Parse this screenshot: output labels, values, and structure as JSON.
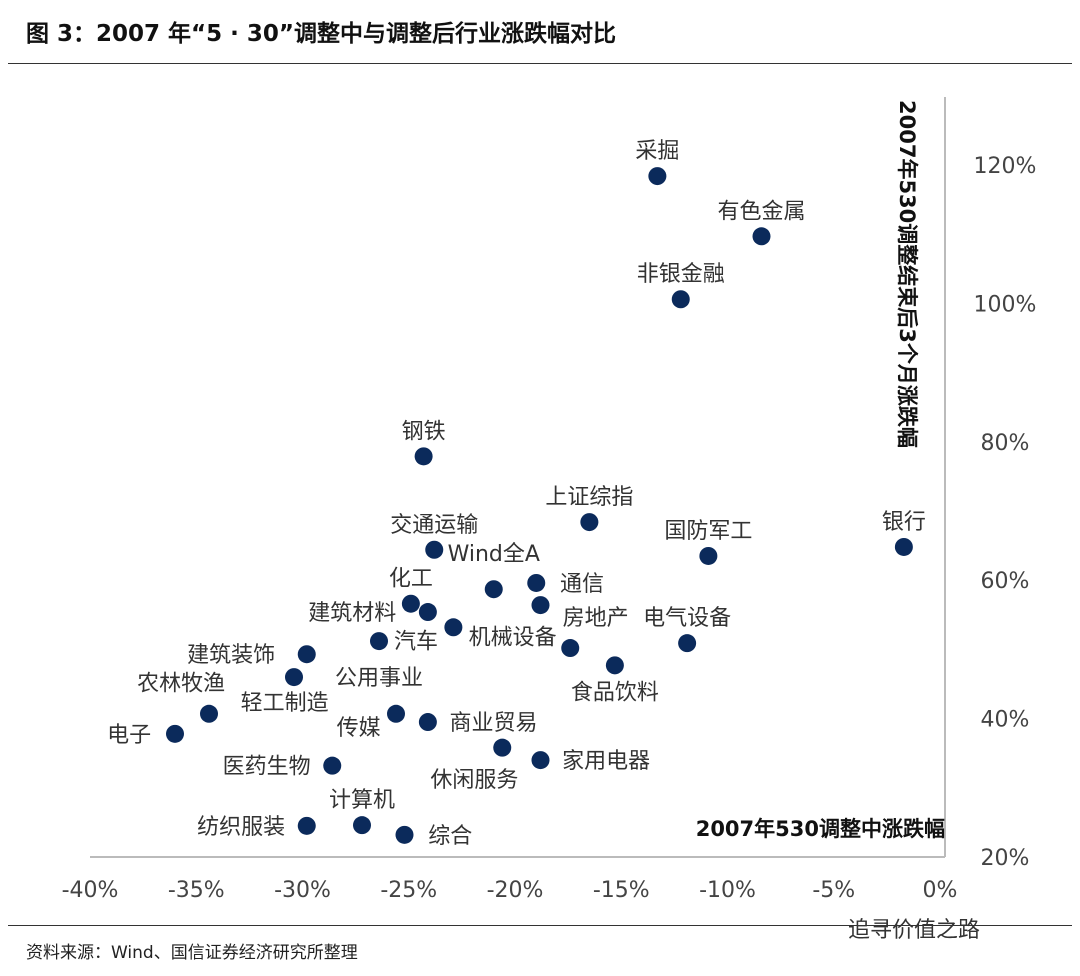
{
  "title": "图 3：2007 年“5 · 30”调整中与调整后行业涨跌幅对比",
  "source": "资料来源：Wind、国信证券经济研究所整理",
  "watermark": "追寻价值之路",
  "chart_data": {
    "type": "scatter",
    "xlabel": "2007年530调整中涨跌幅",
    "ylabel": "2007年530调整结束后3个月涨跌幅",
    "xlim": [
      -40,
      0
    ],
    "ylim": [
      20,
      130
    ],
    "xticks": [
      "-40%",
      "-35%",
      "-30%",
      "-25%",
      "-20%",
      "-15%",
      "-10%",
      "-5%",
      "0%"
    ],
    "yticks": [
      "20%",
      "40%",
      "60%",
      "80%",
      "100%",
      "120%"
    ],
    "grid": false,
    "color": "#0b2a5b",
    "points": [
      {
        "label": "采掘",
        "x": -13.3,
        "y": 118.4
      },
      {
        "label": "有色金属",
        "x": -8.4,
        "y": 109.7
      },
      {
        "label": "非银金融",
        "x": -12.2,
        "y": 100.6
      },
      {
        "label": "钢铁",
        "x": -24.3,
        "y": 77.9
      },
      {
        "label": "上证综指",
        "x": -16.5,
        "y": 68.4
      },
      {
        "label": "交通运输",
        "x": -23.8,
        "y": 64.4
      },
      {
        "label": "国防军工",
        "x": -10.9,
        "y": 63.5
      },
      {
        "label": "银行",
        "x": -1.7,
        "y": 64.8
      },
      {
        "label": "Wind全A",
        "x": -21.0,
        "y": 58.7
      },
      {
        "label": "通信",
        "x": -19.0,
        "y": 59.6
      },
      {
        "label": "机械设备",
        "x": -18.8,
        "y": 56.4
      },
      {
        "label": "化工",
        "x": -24.9,
        "y": 56.6
      },
      {
        "label": "建筑材料",
        "x": -24.1,
        "y": 55.4
      },
      {
        "label": "汽车",
        "x": -22.9,
        "y": 53.2
      },
      {
        "label": "公用事业",
        "x": -26.4,
        "y": 51.2
      },
      {
        "label": "建筑装饰",
        "x": -29.8,
        "y": 49.3
      },
      {
        "label": "轻工制造",
        "x": -30.4,
        "y": 46.0
      },
      {
        "label": "农林牧渔",
        "x": -34.4,
        "y": 40.7
      },
      {
        "label": "电子",
        "x": -36.0,
        "y": 37.8
      },
      {
        "label": "传媒",
        "x": -25.6,
        "y": 40.7
      },
      {
        "label": "商业贸易",
        "x": -24.1,
        "y": 39.5
      },
      {
        "label": "休闲服务",
        "x": -20.6,
        "y": 35.8
      },
      {
        "label": "家用电器",
        "x": -18.8,
        "y": 34.0
      },
      {
        "label": "医药生物",
        "x": -28.6,
        "y": 33.2
      },
      {
        "label": "计算机",
        "x": -27.2,
        "y": 24.6
      },
      {
        "label": "纺织服装",
        "x": -29.8,
        "y": 24.5
      },
      {
        "label": "综合",
        "x": -25.2,
        "y": 23.2
      },
      {
        "label": "电气设备",
        "x": -11.9,
        "y": 50.9
      },
      {
        "label": "食品饮料",
        "x": -15.3,
        "y": 47.7
      },
      {
        "label": "房地产",
        "x": -17.4,
        "y": 50.2
      }
    ]
  }
}
